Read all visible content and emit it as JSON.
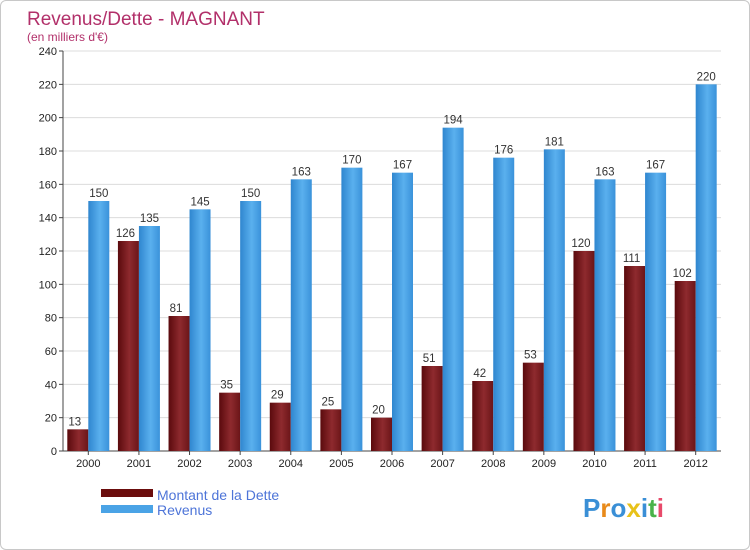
{
  "title": "Revenus/Dette - MAGNANT",
  "subtitle": "(en milliers d'€)",
  "logo": "Proxiti",
  "colors": {
    "dette": "#7a1f22",
    "revenus": "#4aa3e6",
    "title": "#b2306a",
    "legend_text": "#4d74d8",
    "grid": "#dcdcdc"
  },
  "legend": [
    {
      "label": "Montant de la Dette",
      "color": "#6b0d0d"
    },
    {
      "label": "Revenus",
      "color": "#4aa3e6"
    }
  ],
  "chart_data": {
    "type": "bar",
    "title": "Revenus/Dette - MAGNANT",
    "subtitle": "(en milliers d'€)",
    "categories": [
      "2000",
      "2001",
      "2002",
      "2003",
      "2004",
      "2005",
      "2006",
      "2007",
      "2008",
      "2009",
      "2010",
      "2011",
      "2012"
    ],
    "series": [
      {
        "name": "Montant de la Dette",
        "color": "#7a1f22",
        "values": [
          13,
          126,
          81,
          35,
          29,
          25,
          20,
          51,
          42,
          53,
          120,
          111,
          102
        ]
      },
      {
        "name": "Revenus",
        "color": "#4aa3e6",
        "values": [
          150,
          135,
          145,
          150,
          163,
          170,
          167,
          194,
          176,
          181,
          163,
          167,
          220
        ]
      }
    ],
    "xlabel": "",
    "ylabel": "",
    "ylim": [
      0,
      240
    ],
    "yticks": [
      0,
      20,
      40,
      60,
      80,
      100,
      120,
      140,
      160,
      180,
      200,
      220,
      240
    ],
    "grid": true,
    "legend_position": "bottom-left"
  }
}
